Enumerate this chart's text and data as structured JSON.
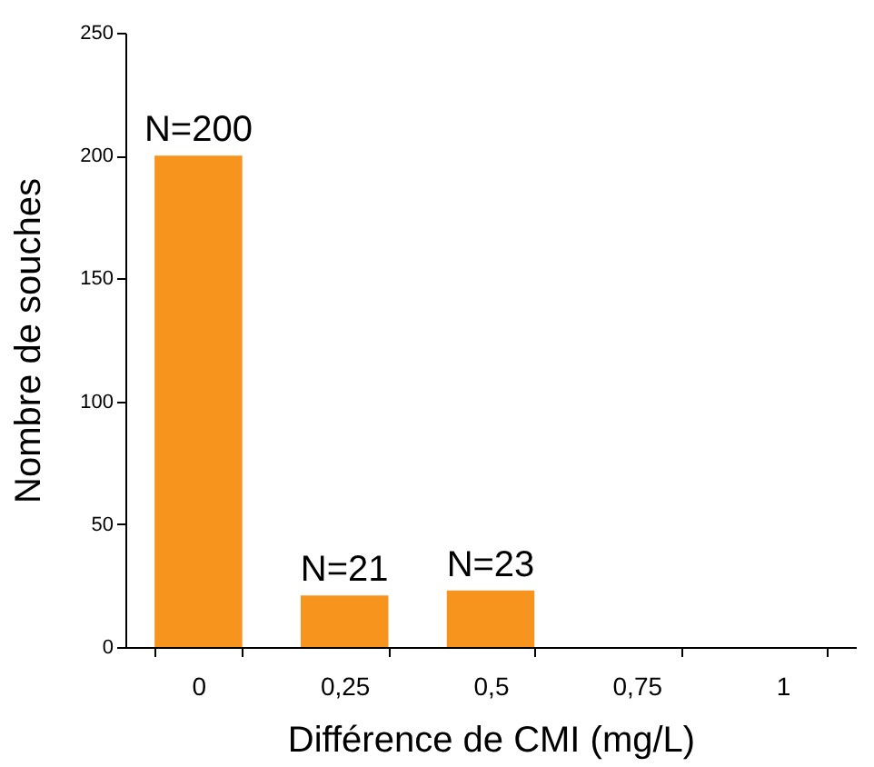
{
  "chart_data": {
    "type": "bar",
    "xlabel": "Différence de CMI (mg/L)",
    "ylabel": "Nombre de souches",
    "categories": [
      "0",
      "0,25",
      "0,5",
      "0,75",
      "1"
    ],
    "values": [
      200,
      21,
      23,
      0,
      0
    ],
    "value_labels": [
      "N=200",
      "N=21",
      "N=23",
      null,
      null
    ],
    "color": "#f7941d",
    "ylim": [
      0,
      250
    ],
    "yticks": [
      0,
      50,
      100,
      150,
      200,
      250
    ],
    "grid": false
  }
}
